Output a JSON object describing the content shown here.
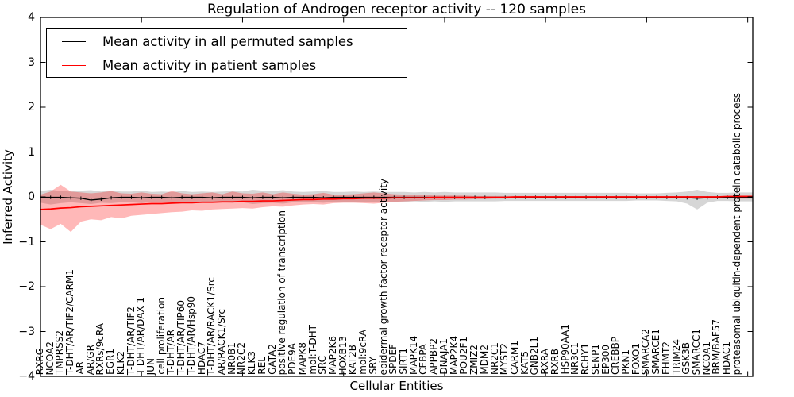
{
  "figure": {
    "title": "Regulation of Androgen receptor activity -- 120 samples",
    "xlabel": "Cellular Entities",
    "ylabel": "Inferred Activity"
  },
  "legend": {
    "entries": [
      {
        "label": "Mean activity in all permuted samples",
        "color": "#000000"
      },
      {
        "label": "Mean activity in patient samples",
        "color": "#ff0000"
      }
    ]
  },
  "chart_data": {
    "type": "line",
    "title": "Regulation of Androgen receptor activity -- 120 samples",
    "xlabel": "Cellular Entities",
    "ylabel": "Inferred Activity",
    "ylim": [
      -4,
      4
    ],
    "xlim": [
      0,
      70.5
    ],
    "yticks": [
      4,
      3,
      2,
      1,
      0,
      -1,
      -2,
      -3,
      -4
    ],
    "xtick_major_positions": [
      10,
      20,
      30,
      40,
      50,
      60,
      70
    ],
    "grid": false,
    "legend_position": "upper left",
    "categories": [
      "RXRG",
      "NCOA2",
      "TMPRSS2",
      "T-DHT/AR/TIF2/CARM1",
      "AR",
      "AR/GR",
      "RXRs/9cRA",
      "EGR1",
      "KLK2",
      "T-DHT/AR/TIF2",
      "T-DHT/AR/DAX-1",
      "JUN",
      "cell proliferation",
      "T-DHT/AR",
      "T-DHT/AR/TIP60",
      "T-DHT/AR/Hsp90",
      "HDAC7",
      "T-DHT/AR/RACK1/Src",
      "AR/RACK1/Src",
      "NR0B1",
      "NR2C2",
      "KLK3",
      "REL",
      "GATA2",
      "positive regulation of transcription",
      "PDE9A",
      "MAPK8",
      "mol:T-DHT",
      "SRC",
      "MAP2K6",
      "HOXB13",
      "KAT2B",
      "mol:9cRA",
      "SRY",
      "epidermal growth factor receptor activity",
      "SPDEF",
      "SIRT1",
      "MAPK14",
      "CEBPA",
      "APPBP2",
      "DNAJA1",
      "MAP2K4",
      "POU2F1",
      "ZMIZ2",
      "MDM2",
      "NR2C1",
      "MYST2",
      "CARM1",
      "KAT5",
      "GNB2L1",
      "RXRA",
      "RXRB",
      "HSP90AA1",
      "NR3C1",
      "RCHY1",
      "SENP1",
      "EP300",
      "CREBBP",
      "PKN1",
      "FOXO1",
      "SMARCA2",
      "SMARCE1",
      "EHMT2",
      "TRIM24",
      "GSK3B",
      "SMARCC1",
      "NCOA1",
      "BRM/BAF57",
      "HDAC1",
      "proteasomal ubiquitin-dependent protein catabolic process"
    ],
    "series": [
      {
        "name": "Mean activity in all permuted samples",
        "color": "#000000",
        "marker": "tick",
        "band_color": "rgba(0,0,0,0.16)",
        "values": [
          -0.01,
          -0.01,
          -0.01,
          -0.02,
          -0.03,
          -0.07,
          -0.05,
          -0.02,
          -0.01,
          -0.01,
          -0.02,
          -0.01,
          -0.01,
          -0.02,
          -0.01,
          -0.01,
          -0.01,
          -0.02,
          -0.01,
          -0.01,
          -0.01,
          -0.02,
          -0.01,
          -0.01,
          -0.02,
          -0.01,
          -0.01,
          -0.01,
          -0.02,
          -0.01,
          -0.01,
          -0.01,
          -0.01,
          -0.01,
          -0.01,
          -0.01,
          -0.01,
          -0.01,
          -0.01,
          -0.01,
          -0.01,
          -0.01,
          -0.01,
          -0.01,
          -0.01,
          -0.01,
          -0.01,
          -0.01,
          -0.01,
          -0.01,
          -0.01,
          -0.01,
          -0.01,
          -0.01,
          -0.01,
          -0.01,
          -0.01,
          -0.01,
          -0.01,
          -0.01,
          -0.01,
          -0.01,
          -0.01,
          -0.01,
          -0.02,
          -0.03,
          -0.02,
          -0.01,
          -0.01,
          -0.01
        ],
        "band_upper": [
          0.13,
          0.16,
          0.13,
          0.12,
          0.14,
          0.15,
          0.12,
          0.14,
          0.12,
          0.12,
          0.14,
          0.11,
          0.12,
          0.11,
          0.13,
          0.11,
          0.12,
          0.11,
          0.12,
          0.13,
          0.12,
          0.16,
          0.14,
          0.13,
          0.15,
          0.12,
          0.11,
          0.12,
          0.13,
          0.11,
          0.11,
          0.12,
          0.11,
          0.12,
          0.11,
          0.11,
          0.11,
          0.1,
          0.11,
          0.1,
          0.11,
          0.1,
          0.1,
          0.1,
          0.1,
          0.1,
          0.09,
          0.09,
          0.09,
          0.09,
          0.09,
          0.09,
          0.09,
          0.09,
          0.09,
          0.09,
          0.09,
          0.09,
          0.09,
          0.08,
          0.08,
          0.08,
          0.09,
          0.1,
          0.12,
          0.16,
          0.11,
          0.09,
          0.09,
          0.1
        ],
        "band_lower": [
          -0.13,
          -0.17,
          -0.14,
          -0.12,
          -0.14,
          -0.16,
          -0.13,
          -0.14,
          -0.12,
          -0.12,
          -0.14,
          -0.11,
          -0.12,
          -0.11,
          -0.13,
          -0.11,
          -0.12,
          -0.11,
          -0.12,
          -0.13,
          -0.12,
          -0.16,
          -0.14,
          -0.13,
          -0.15,
          -0.12,
          -0.11,
          -0.12,
          -0.13,
          -0.11,
          -0.11,
          -0.12,
          -0.11,
          -0.12,
          -0.11,
          -0.11,
          -0.11,
          -0.1,
          -0.11,
          -0.1,
          -0.11,
          -0.1,
          -0.1,
          -0.1,
          -0.1,
          -0.1,
          -0.09,
          -0.09,
          -0.09,
          -0.09,
          -0.09,
          -0.09,
          -0.09,
          -0.09,
          -0.09,
          -0.09,
          -0.09,
          -0.09,
          -0.09,
          -0.08,
          -0.08,
          -0.08,
          -0.09,
          -0.1,
          -0.15,
          -0.28,
          -0.13,
          -0.09,
          -0.09,
          -0.1
        ]
      },
      {
        "name": "Mean activity in patient samples",
        "color": "#ff0000",
        "marker": "none",
        "band_color": "rgba(255,0,0,0.28)",
        "values": [
          -0.28,
          -0.27,
          -0.25,
          -0.24,
          -0.22,
          -0.21,
          -0.2,
          -0.19,
          -0.18,
          -0.17,
          -0.16,
          -0.15,
          -0.15,
          -0.14,
          -0.13,
          -0.13,
          -0.12,
          -0.12,
          -0.11,
          -0.11,
          -0.1,
          -0.1,
          -0.09,
          -0.09,
          -0.08,
          -0.07,
          -0.06,
          -0.06,
          -0.05,
          -0.05,
          -0.04,
          -0.04,
          -0.03,
          -0.03,
          -0.03,
          -0.02,
          -0.02,
          -0.02,
          -0.02,
          -0.01,
          -0.01,
          -0.01,
          -0.01,
          -0.01,
          -0.01,
          -0.01,
          -0.01,
          0,
          0,
          0,
          0,
          0,
          0,
          0,
          0,
          0,
          0,
          0,
          0,
          0,
          0,
          0,
          0,
          0,
          0,
          0,
          0,
          0,
          0.01,
          0.01
        ],
        "band_upper": [
          0.05,
          0.12,
          0.27,
          0.12,
          0.1,
          0.08,
          0.1,
          0.13,
          0.08,
          0.07,
          0.1,
          0.07,
          0.06,
          0.13,
          0.08,
          0.06,
          0.08,
          0.1,
          0.06,
          0.12,
          0.08,
          0.07,
          0.1,
          0.06,
          0.1,
          0.07,
          0.05,
          0.06,
          0.09,
          0.05,
          0.05,
          0.06,
          0.08,
          0.1,
          0.08,
          0.06,
          0.05,
          0.04,
          0.04,
          0.03,
          0.03,
          0.03,
          0.03,
          0.02,
          0.02,
          0.02,
          0.02,
          0.02,
          0.02,
          0.02,
          0.01,
          0.01,
          0.01,
          0.01,
          0.01,
          0.01,
          0.01,
          0.01,
          0.01,
          0.01,
          0.01,
          0.01,
          0.01,
          0.01,
          0.01,
          0.01,
          0.01,
          0.01,
          0.02,
          0.03
        ],
        "band_lower": [
          -0.62,
          -0.72,
          -0.6,
          -0.78,
          -0.55,
          -0.5,
          -0.52,
          -0.45,
          -0.48,
          -0.42,
          -0.4,
          -0.38,
          -0.36,
          -0.34,
          -0.33,
          -0.3,
          -0.31,
          -0.28,
          -0.27,
          -0.26,
          -0.25,
          -0.26,
          -0.23,
          -0.21,
          -0.22,
          -0.19,
          -0.17,
          -0.16,
          -0.17,
          -0.14,
          -0.13,
          -0.13,
          -0.14,
          -0.15,
          -0.13,
          -0.11,
          -0.1,
          -0.09,
          -0.08,
          -0.07,
          -0.07,
          -0.06,
          -0.06,
          -0.05,
          -0.05,
          -0.04,
          -0.04,
          -0.03,
          -0.03,
          -0.03,
          -0.03,
          -0.02,
          -0.02,
          -0.02,
          -0.02,
          -0.02,
          -0.02,
          -0.02,
          -0.02,
          -0.02,
          -0.01,
          -0.01,
          -0.01,
          -0.01,
          -0.01,
          -0.01,
          -0.01,
          -0.01,
          -0.02,
          -0.04
        ]
      }
    ]
  }
}
